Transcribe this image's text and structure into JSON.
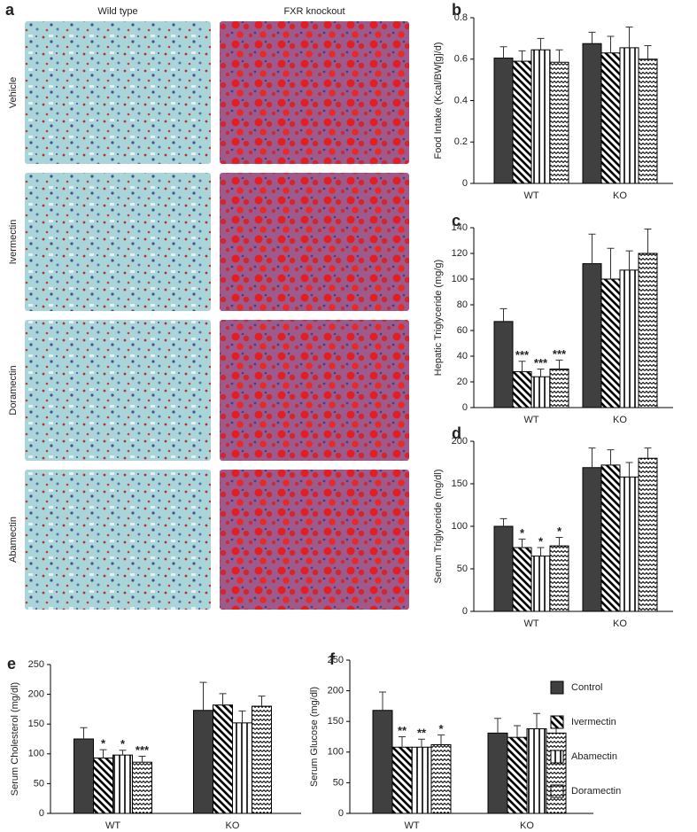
{
  "panel_a": {
    "letter": "a",
    "columns": [
      "Wild type",
      "FXR knockout"
    ],
    "rows": [
      "Vehicle",
      "Ivermectin",
      "Doramectin",
      "Abamectin"
    ]
  },
  "legend": [
    {
      "name": "Control",
      "fill": "solid"
    },
    {
      "name": "Ivermectin",
      "fill": "diag"
    },
    {
      "name": "Abamectin",
      "fill": "vert"
    },
    {
      "name": "Doramectin",
      "fill": "wave"
    }
  ],
  "chart_data": [
    {
      "type": "bar",
      "letter": "b",
      "ylabel": "Food Intake (Kcal/BW[g]/d)",
      "categories": [
        "WT",
        "KO"
      ],
      "ylim": [
        0,
        0.8
      ],
      "yticks": [
        0,
        0.2,
        0.4,
        0.6,
        0.8
      ],
      "series": [
        {
          "fill": "solid",
          "values": [
            0.605,
            0.675
          ],
          "errors": [
            0.055,
            0.055
          ]
        },
        {
          "fill": "diag",
          "values": [
            0.59,
            0.63
          ],
          "errors": [
            0.05,
            0.08
          ]
        },
        {
          "fill": "vert",
          "values": [
            0.645,
            0.655
          ],
          "errors": [
            0.055,
            0.1
          ]
        },
        {
          "fill": "wave",
          "values": [
            0.585,
            0.6
          ],
          "errors": [
            0.06,
            0.065
          ]
        }
      ]
    },
    {
      "type": "bar",
      "letter": "c",
      "ylabel": "Hepatic Triglyceride (mg/g)",
      "categories": [
        "WT",
        "KO"
      ],
      "ylim": [
        0,
        140
      ],
      "yticks": [
        0,
        20,
        40,
        60,
        80,
        100,
        120,
        140
      ],
      "series": [
        {
          "fill": "solid",
          "values": [
            67,
            112
          ],
          "errors": [
            10,
            23
          ]
        },
        {
          "fill": "diag",
          "values": [
            28,
            100
          ],
          "errors": [
            8,
            24
          ],
          "annotations": [
            "***",
            null
          ]
        },
        {
          "fill": "vert",
          "values": [
            24,
            107
          ],
          "errors": [
            6,
            15
          ],
          "annotations": [
            "***",
            null
          ]
        },
        {
          "fill": "wave",
          "values": [
            30,
            120
          ],
          "errors": [
            7,
            19
          ],
          "annotations": [
            "***",
            null
          ]
        }
      ]
    },
    {
      "type": "bar",
      "letter": "d",
      "ylabel": "Serum Triglyceride (mg/dl)",
      "categories": [
        "WT",
        "KO"
      ],
      "ylim": [
        0,
        200
      ],
      "yticks": [
        0,
        50,
        100,
        150,
        200
      ],
      "series": [
        {
          "fill": "solid",
          "values": [
            100,
            169
          ],
          "errors": [
            9,
            23
          ]
        },
        {
          "fill": "diag",
          "values": [
            75,
            172
          ],
          "errors": [
            10,
            18
          ],
          "annotations": [
            "*",
            null
          ]
        },
        {
          "fill": "vert",
          "values": [
            65,
            158
          ],
          "errors": [
            10,
            17
          ],
          "annotations": [
            "*",
            null
          ]
        },
        {
          "fill": "wave",
          "values": [
            77,
            180
          ],
          "errors": [
            10,
            12
          ],
          "annotations": [
            "*",
            null
          ]
        }
      ]
    },
    {
      "type": "bar",
      "letter": "e",
      "ylabel": "Serum Cholesterol (mg/dl)",
      "categories": [
        "WT",
        "KO"
      ],
      "ylim": [
        0,
        250
      ],
      "yticks": [
        0,
        50,
        100,
        150,
        200,
        250
      ],
      "series": [
        {
          "fill": "solid",
          "values": [
            125,
            173
          ],
          "errors": [
            19,
            47
          ]
        },
        {
          "fill": "diag",
          "values": [
            93,
            182
          ],
          "errors": [
            14,
            19
          ],
          "annotations": [
            "*",
            null
          ]
        },
        {
          "fill": "vert",
          "values": [
            98,
            152
          ],
          "errors": [
            8,
            20
          ],
          "annotations": [
            "*",
            null
          ]
        },
        {
          "fill": "wave",
          "values": [
            86,
            180
          ],
          "errors": [
            10,
            17
          ],
          "annotations": [
            "***",
            null
          ]
        }
      ]
    },
    {
      "type": "bar",
      "letter": "f",
      "ylabel": "Serum Glucose (mg/dl)",
      "categories": [
        "WT",
        "KO"
      ],
      "ylim": [
        0,
        250
      ],
      "yticks": [
        0,
        50,
        100,
        150,
        200,
        250
      ],
      "series": [
        {
          "fill": "solid",
          "values": [
            168,
            131
          ],
          "errors": [
            30,
            24
          ]
        },
        {
          "fill": "diag",
          "values": [
            108,
            124
          ],
          "errors": [
            17,
            19
          ],
          "annotations": [
            "**",
            null
          ]
        },
        {
          "fill": "vert",
          "values": [
            108,
            138
          ],
          "errors": [
            13,
            25
          ],
          "annotations": [
            "**",
            null
          ]
        },
        {
          "fill": "wave",
          "values": [
            112,
            131
          ],
          "errors": [
            16,
            19
          ],
          "annotations": [
            "*",
            null
          ]
        }
      ]
    }
  ]
}
